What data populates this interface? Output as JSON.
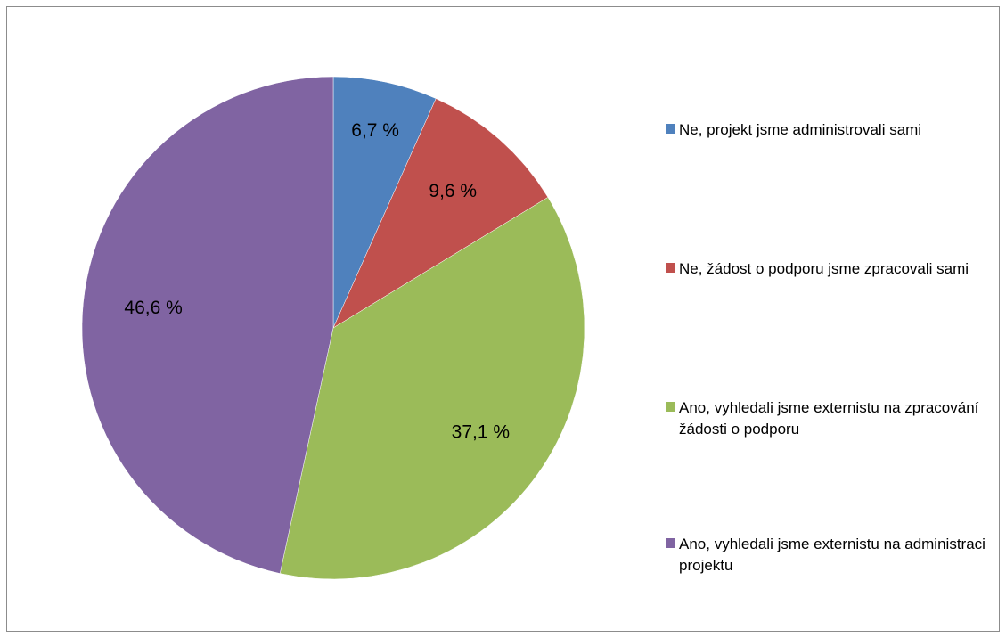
{
  "chart_data": {
    "type": "pie",
    "title": "",
    "slices": [
      {
        "label": "Ne, projekt jsme administrovali sami",
        "value": 6.7,
        "display": "6,7 %",
        "color": "#4f81bd"
      },
      {
        "label": "Ne, žádost o podporu jsme zpracovali sami",
        "value": 9.6,
        "display": "9,6 %",
        "color": "#c0504d"
      },
      {
        "label": "Ano, vyhledali jsme externistu na zpracování žádosti o podporu",
        "value": 37.1,
        "display": "37,1 %",
        "color": "#9bbb59"
      },
      {
        "label": "Ano, vyhledali jsme externistu na administraci projektu",
        "value": 46.6,
        "display": "46,6 %",
        "color": "#8064a2"
      }
    ],
    "legend_position": "right",
    "start_angle": "12 o'clock",
    "direction": "clockwise"
  }
}
